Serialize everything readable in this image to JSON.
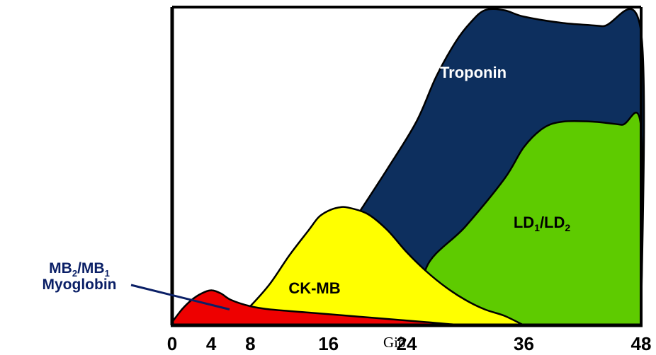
{
  "chart_data": {
    "type": "area",
    "title": "",
    "xlabel": "Giờ",
    "ylabel": "",
    "xlim": [
      0,
      48
    ],
    "ylim": [
      0,
      100
    ],
    "x_ticks": [
      0,
      4,
      8,
      16,
      24,
      36,
      48
    ],
    "grid": false,
    "colors": {
      "Troponin": "#0d2f5e",
      "LD1/LD2": "#5ecb00",
      "CK-MB": "#ffff00",
      "MB2/MB1 Myoglobin": "#ee0000",
      "outline": "#000000"
    },
    "series": [
      {
        "name": "Troponin",
        "label": "Troponin",
        "points": [
          [
            9,
            0
          ],
          [
            14,
            10
          ],
          [
            18,
            30
          ],
          [
            22,
            49
          ],
          [
            25,
            64
          ],
          [
            27,
            78
          ],
          [
            29,
            89
          ],
          [
            30.5,
            95
          ],
          [
            32,
            99
          ],
          [
            34,
            99
          ],
          [
            36,
            97
          ],
          [
            40,
            95
          ],
          [
            44,
            94
          ],
          [
            48,
            92
          ],
          [
            48,
            0
          ]
        ]
      },
      {
        "name": "LD1/LD2",
        "label_main": "LD",
        "label_sub1": "1",
        "label_mid": "/LD",
        "label_sub2": "2",
        "points": [
          [
            26,
            0
          ],
          [
            26,
            18
          ],
          [
            30,
            31
          ],
          [
            34,
            46
          ],
          [
            36,
            56
          ],
          [
            38,
            62
          ],
          [
            40,
            64
          ],
          [
            43,
            64
          ],
          [
            46,
            63
          ],
          [
            48,
            62
          ],
          [
            48,
            0
          ]
        ]
      },
      {
        "name": "CK-MB",
        "label": "CK-MB",
        "points": [
          [
            6,
            0
          ],
          [
            8,
            6
          ],
          [
            10,
            13
          ],
          [
            12,
            22
          ],
          [
            14,
            30
          ],
          [
            15,
            34
          ],
          [
            16,
            36
          ],
          [
            17,
            37
          ],
          [
            18,
            37
          ],
          [
            20,
            35
          ],
          [
            22,
            30
          ],
          [
            24,
            23
          ],
          [
            26,
            17
          ],
          [
            28,
            12
          ],
          [
            30,
            8
          ],
          [
            32,
            5
          ],
          [
            34,
            3
          ],
          [
            36,
            0
          ]
        ]
      },
      {
        "name": "MB2/MB1 Myoglobin",
        "points": [
          [
            0,
            1
          ],
          [
            1,
            5
          ],
          [
            2,
            8
          ],
          [
            3,
            10
          ],
          [
            4,
            11
          ],
          [
            5,
            10
          ],
          [
            6,
            8
          ],
          [
            8,
            6
          ],
          [
            10,
            5
          ],
          [
            14,
            4
          ],
          [
            18,
            3
          ],
          [
            22,
            2
          ],
          [
            26,
            1
          ],
          [
            30,
            0
          ],
          [
            32,
            0
          ]
        ]
      }
    ],
    "annotation": {
      "line1_main": "MB",
      "line1_sub1": "2",
      "line1_mid": "/MB",
      "line1_sub2": "1",
      "line2": "Myoglobin",
      "points_to_x": 5
    }
  }
}
